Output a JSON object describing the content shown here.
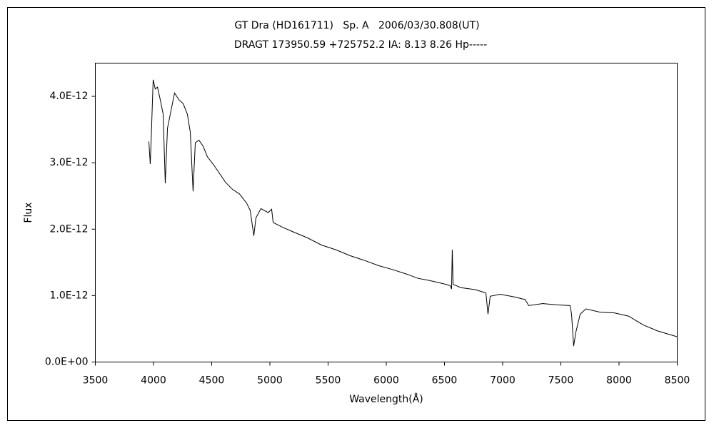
{
  "chart_data": {
    "type": "line",
    "title": "GT Dra (HD161711)   Sp. A   2006/03/30.808(UT)",
    "subtitle": "DRAGT 173950.59 +725752.2 IA: 8.13 8.26 Hp-----",
    "xlabel": "Wavelength(Å)",
    "ylabel": "Flux",
    "xlim": [
      3500,
      8500
    ],
    "xticks": [
      3500,
      4000,
      4500,
      5000,
      5500,
      6000,
      6500,
      7000,
      7500,
      8000,
      8500
    ],
    "ylim": [
      0,
      4.5e-12
    ],
    "yticks": [
      {
        "value": 0,
        "label": "0.0E+00"
      },
      {
        "value": 1e-12,
        "label": "1.0E-12"
      },
      {
        "value": 2e-12,
        "label": "2.0E-12"
      },
      {
        "value": 3e-12,
        "label": "3.0E-12"
      },
      {
        "value": 4e-12,
        "label": "4.0E-12"
      }
    ],
    "grid": false,
    "series": [
      {
        "color": "#000000",
        "x": [
          3960,
          3972,
          3979,
          3997,
          4015,
          4034,
          4058,
          4083,
          4101,
          4120,
          4144,
          4181,
          4218,
          4255,
          4291,
          4316,
          4340,
          4359,
          4390,
          4426,
          4463,
          4512,
          4555,
          4617,
          4678,
          4739,
          4801,
          4831,
          4862,
          4880,
          4923,
          4985,
          5015,
          5028,
          5107,
          5199,
          5322,
          5445,
          5567,
          5690,
          5813,
          5936,
          6058,
          6181,
          6273,
          6365,
          6488,
          6549,
          6561,
          6567,
          6574,
          6641,
          6764,
          6856,
          6874,
          6893,
          6979,
          7101,
          7193,
          7224,
          7347,
          7469,
          7580,
          7592,
          7610,
          7629,
          7666,
          7715,
          7837,
          7960,
          8083,
          8206,
          8328,
          8500
        ],
        "values": [
          3.32e-12,
          2.98e-12,
          3.3e-12,
          4.25e-12,
          4.11e-12,
          4.14e-12,
          3.95e-12,
          3.73e-12,
          2.69e-12,
          3.52e-12,
          3.73e-12,
          4.05e-12,
          3.95e-12,
          3.89e-12,
          3.73e-12,
          3.46e-12,
          2.57e-12,
          3.3e-12,
          3.34e-12,
          3.25e-12,
          3.09e-12,
          2.98e-12,
          2.87e-12,
          2.71e-12,
          2.6e-12,
          2.53e-12,
          2.39e-12,
          2.28e-12,
          1.9e-12,
          2.17e-12,
          2.31e-12,
          2.25e-12,
          2.3e-12,
          2.1e-12,
          2.03e-12,
          1.96e-12,
          1.87e-12,
          1.76e-12,
          1.69e-12,
          1.6e-12,
          1.53e-12,
          1.45e-12,
          1.39e-12,
          1.32e-12,
          1.26e-12,
          1.23e-12,
          1.18e-12,
          1.15e-12,
          1.1e-12,
          1.69e-12,
          1.17e-12,
          1.12e-12,
          1.09e-12,
          1.04e-12,
          7.2e-13,
          9.9e-13,
          1.02e-12,
          9.8e-13,
          9.4e-13,
          8.5e-13,
          8.8e-13,
          8.6e-13,
          8.5e-13,
          7.2e-13,
          2.4e-13,
          4.5e-13,
          7.2e-13,
          8e-13,
          7.5e-13,
          7.4e-13,
          6.9e-13,
          5.6e-13,
          4.7e-13,
          3.8e-13
        ]
      }
    ]
  }
}
